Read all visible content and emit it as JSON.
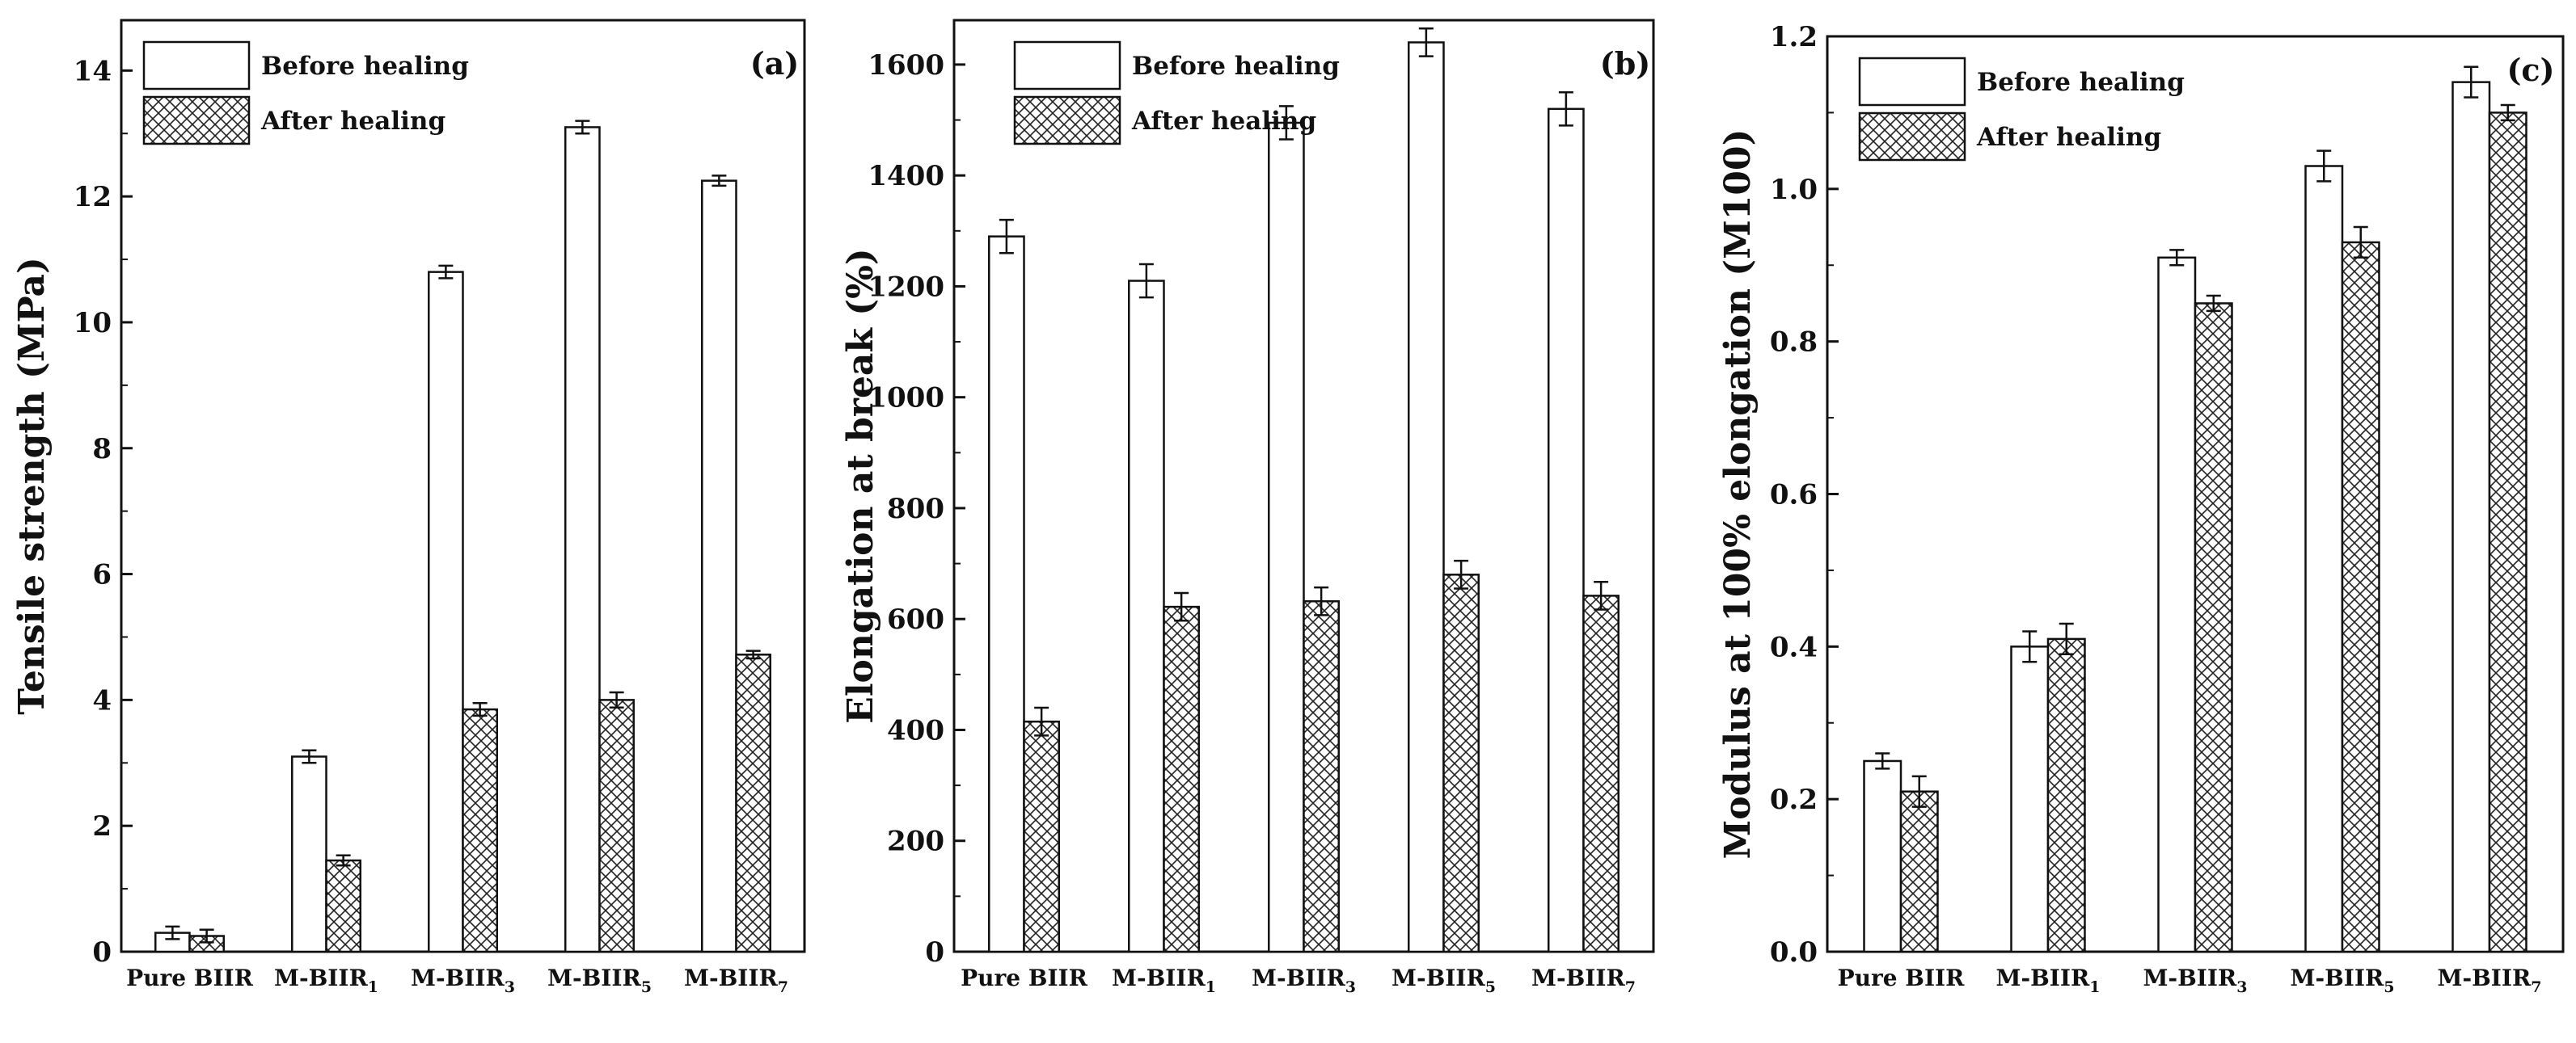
{
  "chart_data": [
    {
      "type": "bar",
      "panel_label": "(a)",
      "ylabel": "Tensile strength (MPa)",
      "xlabel": "",
      "ylim": [
        0,
        14.8
      ],
      "yticks": [
        0,
        2,
        4,
        6,
        8,
        10,
        12,
        14
      ],
      "categories": [
        {
          "base": "Pure BIIR",
          "sub": ""
        },
        {
          "base": "M-BIIR",
          "sub": "1"
        },
        {
          "base": "M-BIIR",
          "sub": "3"
        },
        {
          "base": "M-BIIR",
          "sub": "5"
        },
        {
          "base": "M-BIIR",
          "sub": "7"
        }
      ],
      "legend": [
        "Before healing",
        "After healing"
      ],
      "legend_position": "top-left",
      "series": [
        {
          "name": "Before healing",
          "values": [
            0.3,
            3.1,
            10.8,
            13.1,
            12.25
          ],
          "errors": [
            0.1,
            0.1,
            0.1,
            0.1,
            0.08
          ]
        },
        {
          "name": "After healing",
          "values": [
            0.25,
            1.45,
            3.85,
            4.0,
            4.72
          ],
          "errors": [
            0.1,
            0.08,
            0.1,
            0.12,
            0.06
          ]
        }
      ]
    },
    {
      "type": "bar",
      "panel_label": "(b)",
      "ylabel": "Elongation at break (%)",
      "xlabel": "",
      "ylim": [
        0,
        1680
      ],
      "yticks": [
        0,
        200,
        400,
        600,
        800,
        1000,
        1200,
        1400,
        1600
      ],
      "categories": [
        {
          "base": "Pure BIIR",
          "sub": ""
        },
        {
          "base": "M-BIIR",
          "sub": "1"
        },
        {
          "base": "M-BIIR",
          "sub": "3"
        },
        {
          "base": "M-BIIR",
          "sub": "5"
        },
        {
          "base": "M-BIIR",
          "sub": "7"
        }
      ],
      "legend": [
        "Before healing",
        "After healing"
      ],
      "legend_position": "top-left",
      "series": [
        {
          "name": "Before healing",
          "values": [
            1290,
            1210,
            1495,
            1640,
            1520
          ],
          "errors": [
            30,
            30,
            30,
            25,
            30
          ]
        },
        {
          "name": "After healing",
          "values": [
            415,
            622,
            632,
            680,
            642
          ],
          "errors": [
            25,
            25,
            25,
            25,
            25
          ]
        }
      ]
    },
    {
      "type": "bar",
      "panel_label": "(c)",
      "ylabel": "Modulus at 100% elongation (M100)",
      "xlabel": "",
      "ylim": [
        0,
        1.2
      ],
      "yticks": [
        0.0,
        0.2,
        0.4,
        0.6,
        0.8,
        1.0,
        1.2
      ],
      "categories": [
        {
          "base": "Pure BIIR",
          "sub": ""
        },
        {
          "base": "M-BIIR",
          "sub": "1"
        },
        {
          "base": "M-BIIR",
          "sub": "3"
        },
        {
          "base": "M-BIIR",
          "sub": "5"
        },
        {
          "base": "M-BIIR",
          "sub": "7"
        }
      ],
      "legend": [
        "Before healing",
        "After healing"
      ],
      "legend_position": "top-left",
      "series": [
        {
          "name": "Before healing",
          "values": [
            0.25,
            0.4,
            0.91,
            1.03,
            1.14
          ],
          "errors": [
            0.01,
            0.02,
            0.01,
            0.02,
            0.02
          ]
        },
        {
          "name": "After healing",
          "values": [
            0.21,
            0.41,
            0.85,
            0.93,
            1.1
          ],
          "errors": [
            0.02,
            0.02,
            0.01,
            0.02,
            0.01
          ]
        }
      ]
    }
  ]
}
